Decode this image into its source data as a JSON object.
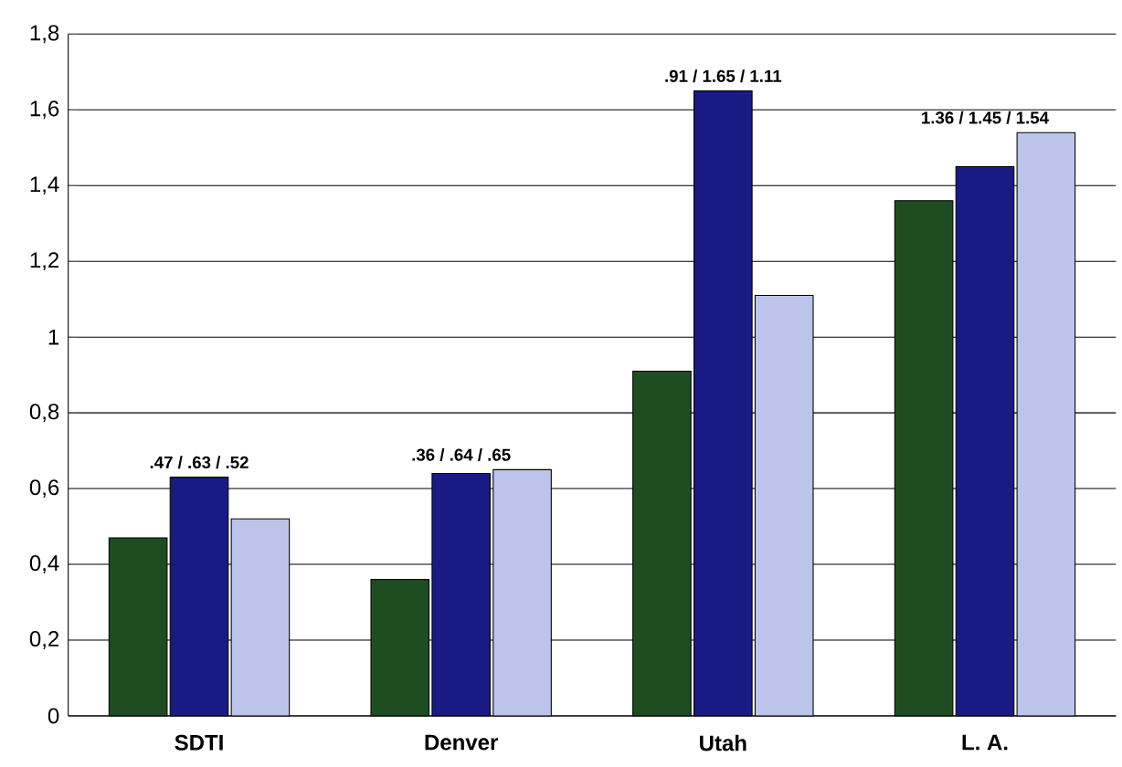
{
  "chart_data": {
    "type": "bar",
    "categories": [
      "SDTI",
      "Denver",
      "Utah",
      "L. A."
    ],
    "series": [
      {
        "color": "#1f4d22",
        "values": [
          0.47,
          0.36,
          0.91,
          1.36
        ]
      },
      {
        "color": "#1a1a85",
        "values": [
          0.63,
          0.64,
          1.65,
          1.45
        ]
      },
      {
        "color": "#bcc4ec",
        "values": [
          0.52,
          0.65,
          1.11,
          1.54
        ]
      }
    ],
    "ylim": [
      0,
      1.8
    ],
    "yticks": [
      0,
      {
        "value": 0.2,
        "label": "0,2"
      },
      {
        "value": 0.4,
        "label": "0,4"
      },
      {
        "value": 0.6,
        "label": "0,6"
      },
      {
        "value": 0.8,
        "label": "0,8"
      },
      1,
      {
        "value": 1.2,
        "label": "1,2"
      },
      {
        "value": 1.4,
        "label": "1,4"
      },
      {
        "value": 1.6,
        "label": "1,6"
      },
      {
        "value": 1.8,
        "label": "1,8"
      }
    ],
    "annotations": [
      ".47 / .63 / .52",
      ".36 / .64 / .65",
      ".91 / 1.65 / 1.11",
      "1.36 / 1.45 / 1.54"
    ],
    "grid": "y"
  }
}
